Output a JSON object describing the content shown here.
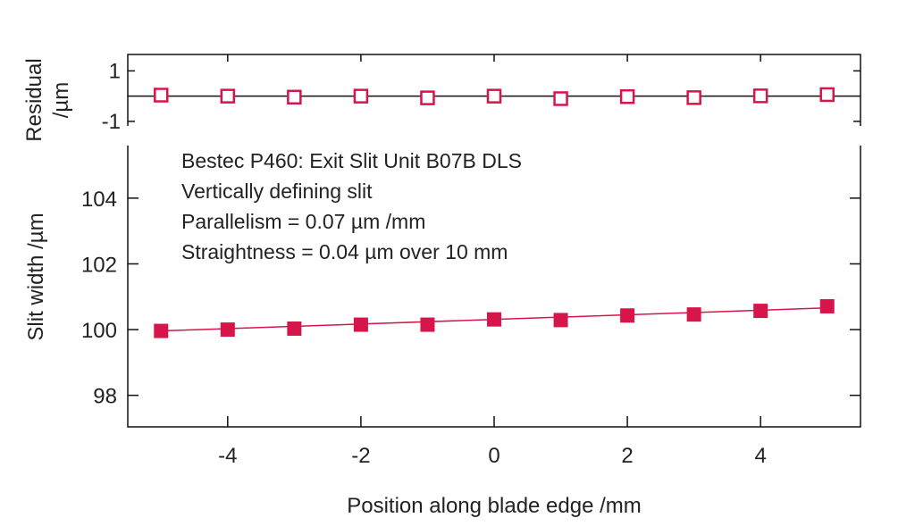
{
  "chart_data": [
    {
      "type": "scatter",
      "panel": "residual",
      "ylabel": "Residual /µm",
      "ylim": [
        -1.18,
        1.65
      ],
      "xlim": [
        -5.5,
        5.5
      ],
      "yticks": [
        1,
        -1
      ],
      "ytick_labels": [
        "1",
        "-1"
      ],
      "zero_line": true,
      "marker": "open-square",
      "color": "#d6154a",
      "x": [
        -5,
        -4,
        -3,
        -2,
        -1,
        0,
        1,
        2,
        3,
        4,
        5
      ],
      "y": [
        0.04,
        0,
        -0.04,
        0,
        -0.07,
        0,
        -0.1,
        -0.02,
        -0.06,
        0.01,
        0.06
      ]
    },
    {
      "type": "line",
      "panel": "main",
      "xlabel": "Position along blade edge /mm",
      "ylabel": "Slit width /µm",
      "xlim": [
        -5.5,
        5.5
      ],
      "ylim": [
        97.04,
        105.6
      ],
      "xticks": [
        -4,
        -2,
        0,
        2,
        4
      ],
      "xtick_labels": [
        "-4",
        "-2",
        "0",
        "2",
        "4"
      ],
      "yticks": [
        98,
        100,
        102,
        104
      ],
      "ytick_labels": [
        "98",
        "100",
        "102",
        "104"
      ],
      "marker": "filled-square",
      "color": "#d6154a",
      "x": [
        -5,
        -4,
        -3,
        -2,
        -1,
        0,
        1,
        2,
        3,
        4,
        5
      ],
      "y": [
        99.96,
        100.0,
        100.03,
        100.15,
        100.15,
        100.31,
        100.29,
        100.43,
        100.46,
        100.57,
        100.71
      ],
      "fit": {
        "slope": 0.07,
        "intercept": 100.31
      },
      "annotations": [
        "Bestec P460: Exit Slit Unit B07B DLS",
        "Vertically defining slit",
        "Parallelism = 0.07 µm /mm",
        "Straightness = 0.04 µm over 10 mm"
      ]
    }
  ]
}
